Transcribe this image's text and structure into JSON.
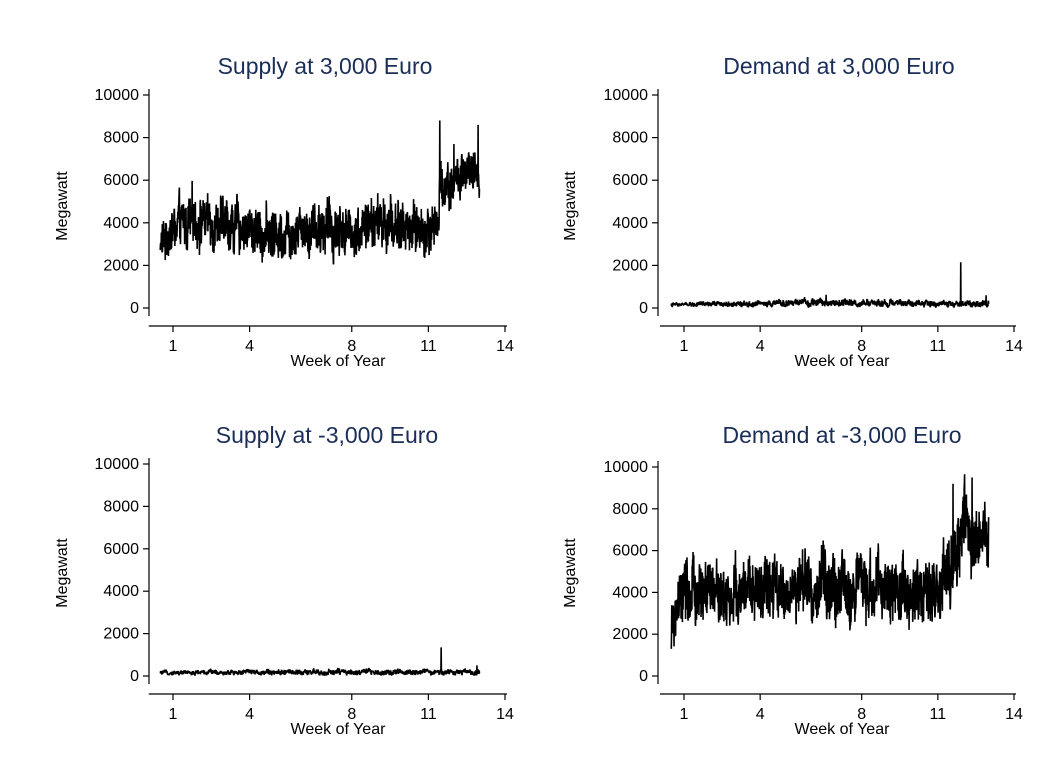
{
  "chart_data": [
    {
      "type": "line",
      "title": "Supply at 3,000 Euro",
      "xlabel": "Week of Year",
      "ylabel": "Megawatt",
      "xlim": [
        0,
        14
      ],
      "ylim": [
        0,
        10000
      ],
      "xticks": [
        1,
        4,
        8,
        11,
        14
      ],
      "yticks": [
        0,
        2000,
        4000,
        6000,
        8000,
        10000
      ],
      "grid": false,
      "series": [
        {
          "color": "#000000",
          "x": [
            0.5,
            1,
            2,
            3,
            4,
            5,
            6,
            7,
            8,
            9,
            10,
            11,
            11.4,
            11.5,
            12,
            12.5,
            13
          ],
          "y": [
            3000,
            3600,
            4200,
            3900,
            3700,
            3500,
            3900,
            3800,
            3600,
            4000,
            3800,
            3600,
            4400,
            5800,
            6000,
            6200,
            6100
          ],
          "noise": [
            700,
            1100,
            1100,
            1000,
            1000,
            1100,
            1100,
            1100,
            1000,
            1100,
            1100,
            1000,
            1000,
            1000,
            1000,
            900,
            900
          ],
          "spikes": [
            [
              11.45,
              8800
            ],
            [
              12.95,
              8600
            ],
            [
              12.0,
              7700
            ]
          ]
        }
      ]
    },
    {
      "type": "line",
      "title": "Demand at 3,000 Euro",
      "xlabel": "Week of Year",
      "ylabel": "Megawatt",
      "xlim": [
        0,
        14
      ],
      "ylim": [
        0,
        10000
      ],
      "xticks": [
        1,
        4,
        8,
        11,
        14
      ],
      "yticks": [
        0,
        2000,
        4000,
        6000,
        8000,
        10000
      ],
      "grid": false,
      "series": [
        {
          "color": "#000000",
          "x": [
            0.5,
            2,
            4,
            6,
            8,
            10,
            12,
            13
          ],
          "y": [
            150,
            180,
            200,
            250,
            230,
            220,
            200,
            220
          ],
          "noise": [
            80,
            110,
            130,
            160,
            150,
            140,
            140,
            150
          ],
          "spikes": [
            [
              11.9,
              2150
            ],
            [
              12.9,
              600
            ],
            [
              6.6,
              620
            ]
          ]
        }
      ]
    },
    {
      "type": "line",
      "title": "Supply at -3,000 Euro",
      "xlabel": "Week of Year",
      "ylabel": "Megawatt",
      "xlim": [
        0,
        14
      ],
      "ylim": [
        0,
        10000
      ],
      "xticks": [
        1,
        4,
        8,
        11,
        14
      ],
      "yticks": [
        0,
        2000,
        4000,
        6000,
        8000,
        10000
      ],
      "grid": false,
      "series": [
        {
          "color": "#000000",
          "x": [
            0.5,
            2,
            4,
            6,
            8,
            10,
            12,
            13
          ],
          "y": [
            150,
            170,
            180,
            180,
            190,
            180,
            170,
            200
          ],
          "noise": [
            90,
            110,
            120,
            120,
            130,
            120,
            120,
            130
          ],
          "spikes": [
            [
              11.5,
              1350
            ],
            [
              12.9,
              500
            ]
          ]
        }
      ]
    },
    {
      "type": "line",
      "title": "Demand at -3,000 Euro",
      "xlabel": "Week of Year",
      "ylabel": "Megawatt",
      "xlim": [
        0,
        14
      ],
      "ylim": [
        0,
        10000
      ],
      "xticks": [
        1,
        4,
        8,
        11,
        14
      ],
      "yticks": [
        0,
        2000,
        4000,
        6000,
        8000,
        10000
      ],
      "grid": false,
      "series": [
        {
          "color": "#000000",
          "x": [
            0.5,
            1,
            2,
            3,
            4,
            5,
            6,
            7,
            8,
            9,
            10,
            11,
            11.5,
            12,
            12.5,
            13
          ],
          "y": [
            2200,
            3800,
            4000,
            3800,
            4100,
            3900,
            4300,
            4200,
            4100,
            4200,
            4000,
            4300,
            4900,
            6800,
            6600,
            6100
          ],
          "noise": [
            900,
            1400,
            1300,
            1300,
            1400,
            1300,
            1500,
            1400,
            1400,
            1400,
            1300,
            1400,
            1500,
            1500,
            1400,
            1300
          ],
          "spikes": [
            [
              11.6,
              9200
            ],
            [
              12.05,
              9650
            ],
            [
              12.35,
              9500
            ],
            [
              13.0,
              7600
            ],
            [
              0.5,
              1300
            ]
          ]
        }
      ]
    }
  ]
}
